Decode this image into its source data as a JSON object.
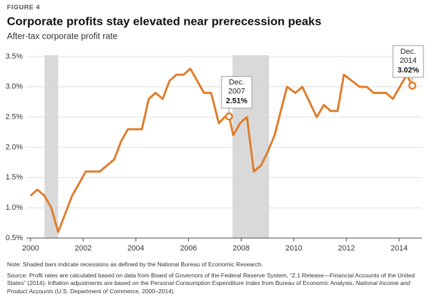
{
  "chart_data": {
    "type": "line",
    "figure_label": "FIGURE 4",
    "title": "Corporate profits stay elevated near prerecession peaks",
    "subtitle": "After-tax corporate profit rate",
    "x": [
      2000.0,
      2000.26,
      2000.53,
      2000.79,
      2001.05,
      2001.58,
      2002.1,
      2002.63,
      2003.18,
      2003.44,
      2003.7,
      2004.23,
      2004.49,
      2004.75,
      2005.02,
      2005.28,
      2005.54,
      2005.81,
      2006.07,
      2006.59,
      2006.86,
      2007.15,
      2007.38,
      2007.54,
      2007.7,
      2007.96,
      2008.22,
      2008.48,
      2008.75,
      2008.98,
      2009.27,
      2009.74,
      2010.06,
      2010.32,
      2010.87,
      2011.14,
      2011.4,
      2011.66,
      2011.9,
      2012.5,
      2012.77,
      2013.03,
      2013.5,
      2013.76,
      2014.29,
      2014.5
    ],
    "series": [
      {
        "name": "After-tax corporate profit rate",
        "color": "#e07b28",
        "values": [
          1.2,
          1.3,
          1.2,
          1.0,
          0.6,
          1.2,
          1.6,
          1.6,
          1.8,
          2.1,
          2.3,
          2.3,
          2.8,
          2.9,
          2.8,
          3.1,
          3.2,
          3.2,
          3.3,
          2.9,
          2.9,
          2.4,
          2.5,
          2.51,
          2.2,
          2.4,
          2.5,
          1.6,
          1.7,
          1.9,
          2.2,
          3.0,
          2.9,
          3.0,
          2.5,
          2.7,
          2.6,
          2.6,
          3.2,
          3.0,
          3.0,
          2.9,
          2.9,
          2.8,
          3.2,
          3.02
        ]
      }
    ],
    "recessions": [
      [
        2000.53,
        2001.05
      ],
      [
        2007.67,
        2009.06
      ]
    ],
    "recession_color": "#d9d9d9",
    "xlim": [
      1999.84,
      2014.87
    ],
    "xticks": [
      2000,
      2002,
      2004,
      2006,
      2008,
      2010,
      2012,
      2014
    ],
    "ylim": [
      0.5,
      3.5
    ],
    "yticks": [
      {
        "value": 0.5,
        "label": "0.5%"
      },
      {
        "value": 1.0,
        "label": "1.0%"
      },
      {
        "value": 1.5,
        "label": "1.5%"
      },
      {
        "value": 2.0,
        "label": "2.0%"
      },
      {
        "value": 2.5,
        "label": "2.5%"
      },
      {
        "value": 3.0,
        "label": "3.0%"
      },
      {
        "value": 3.5,
        "label": "3.5%"
      }
    ],
    "grid": true,
    "annotations": [
      {
        "x": 2007.54,
        "value": 2.51,
        "date_lines": [
          "Dec.",
          "2007"
        ],
        "value_label": "2.51%"
      },
      {
        "x": 2014.5,
        "value": 3.02,
        "date_lines": [
          "Dec.",
          "2014"
        ],
        "value_label": "3.02%"
      }
    ],
    "note": "Note: Shaded bars indicate recessions as defined by the National Bureau of Economic Research.",
    "source": [
      "Source: Profit rates are calculated based on data from Board of Governors of the Federal Reserve System, “Z.1 Release—Financial Accounts of the United States” (2014). Inflation adjustments are based on the Personal Consumption Expenditure Index from Bureau of Economic Analysis, ",
      "National Income and Product Accounts",
      " (U.S. Department of Commerce, 2000–2014)."
    ]
  }
}
